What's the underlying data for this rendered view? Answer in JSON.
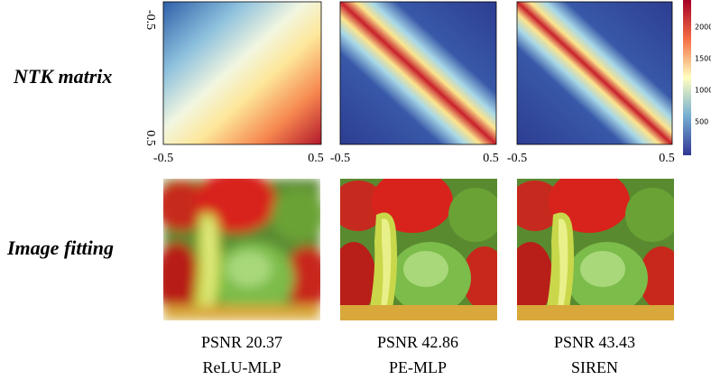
{
  "row_labels": [
    "NTK matrix",
    "Image fitting"
  ],
  "axis_ticks": {
    "x": [
      "-0.5",
      "0.5"
    ],
    "y": [
      "-0.5",
      "0.5"
    ]
  },
  "colorbar_ticks": [
    "2000",
    "1500",
    "1000",
    "500"
  ],
  "panels": [
    {
      "psnr": "PSNR 20.37",
      "method": "ReLU-MLP"
    },
    {
      "psnr": "PSNR 42.86",
      "method": "PE-MLP"
    },
    {
      "psnr": "PSNR 43.43",
      "method": "SIREN"
    }
  ]
}
